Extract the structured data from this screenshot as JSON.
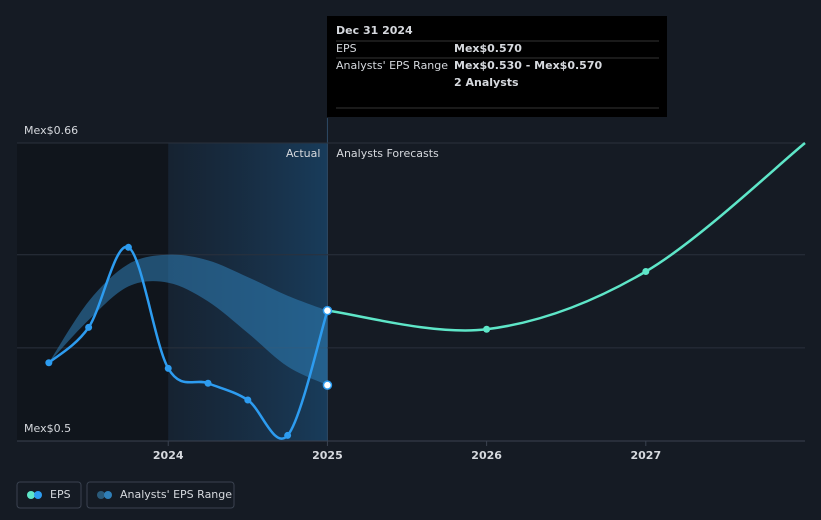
{
  "chart_data": {
    "type": "line",
    "series": [
      {
        "name": "EPS",
        "color": "#2d9cf0",
        "x": [
          2023.25,
          2023.5,
          2023.75,
          2024.0,
          2024.25,
          2024.5,
          2024.75,
          2025.0
        ],
        "values": [
          0.542,
          0.561,
          0.604,
          0.539,
          0.531,
          0.522,
          0.503,
          0.57
        ]
      }
    ],
    "forecast": {
      "color": "#5ee6c8",
      "x": [
        2025.0,
        2026.0,
        2027.0,
        2028.0
      ],
      "values": [
        0.57,
        0.56,
        0.591,
        0.66
      ]
    },
    "range": {
      "name": "Analysts' EPS Range",
      "color": "#2f7fb8",
      "x": [
        2023.25,
        2023.5,
        2023.75,
        2024.0,
        2024.25,
        2024.5,
        2024.75,
        2025.0
      ],
      "high": [
        0.542,
        0.575,
        0.595,
        0.6,
        0.597,
        0.588,
        0.578,
        0.57
      ],
      "low": [
        0.542,
        0.565,
        0.583,
        0.585,
        0.575,
        0.558,
        0.54,
        0.53
      ]
    },
    "xlim": [
      2023.05,
      2028.0
    ],
    "xticks": [
      2024,
      2025,
      2026,
      2027
    ],
    "ylim": [
      0.5,
      0.66
    ],
    "yticks": [
      {
        "value": 0.5,
        "label": "Mex$0.5"
      },
      {
        "value": 0.55,
        "label": null
      },
      {
        "value": 0.6,
        "label": null
      },
      {
        "value": 0.66,
        "label": "Mex$0.66"
      }
    ],
    "grid": true,
    "annotations": [
      "Actual",
      "Analysts Forecasts"
    ],
    "tooltip": {
      "date": "Dec 31 2024",
      "rows": [
        [
          "EPS",
          "Mex$0.570"
        ],
        [
          "Analysts' EPS Range",
          "Mex$0.530 - Mex$0.570"
        ],
        [
          null,
          "2 Analysts"
        ]
      ]
    }
  }
}
